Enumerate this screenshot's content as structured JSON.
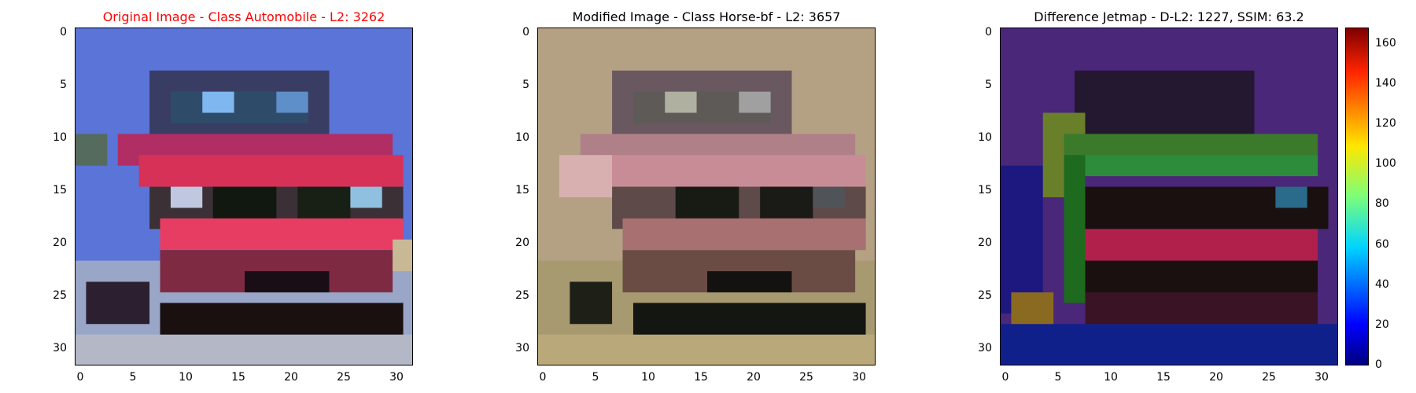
{
  "panels": [
    {
      "id": "original",
      "title": "Original Image - Class Automobile - L2: 3262",
      "title_color": "#ff0000"
    },
    {
      "id": "modified",
      "title": "Modified Image - Class Horse-bf - L2: 3657",
      "title_color": "#000000"
    },
    {
      "id": "difference",
      "title": "Difference Jetmap - D-L2: 1227, SSIM: 63.2",
      "title_color": "#000000"
    }
  ],
  "axis_ticks": {
    "y": [
      "0",
      "5",
      "10",
      "15",
      "20",
      "25",
      "30"
    ],
    "x": [
      "0",
      "5",
      "10",
      "15",
      "20",
      "25",
      "30"
    ]
  },
  "colorbar": {
    "ticks": [
      "0",
      "20",
      "40",
      "60",
      "80",
      "100",
      "120",
      "140",
      "160"
    ],
    "max_value": 168,
    "colormap": "jet"
  }
}
